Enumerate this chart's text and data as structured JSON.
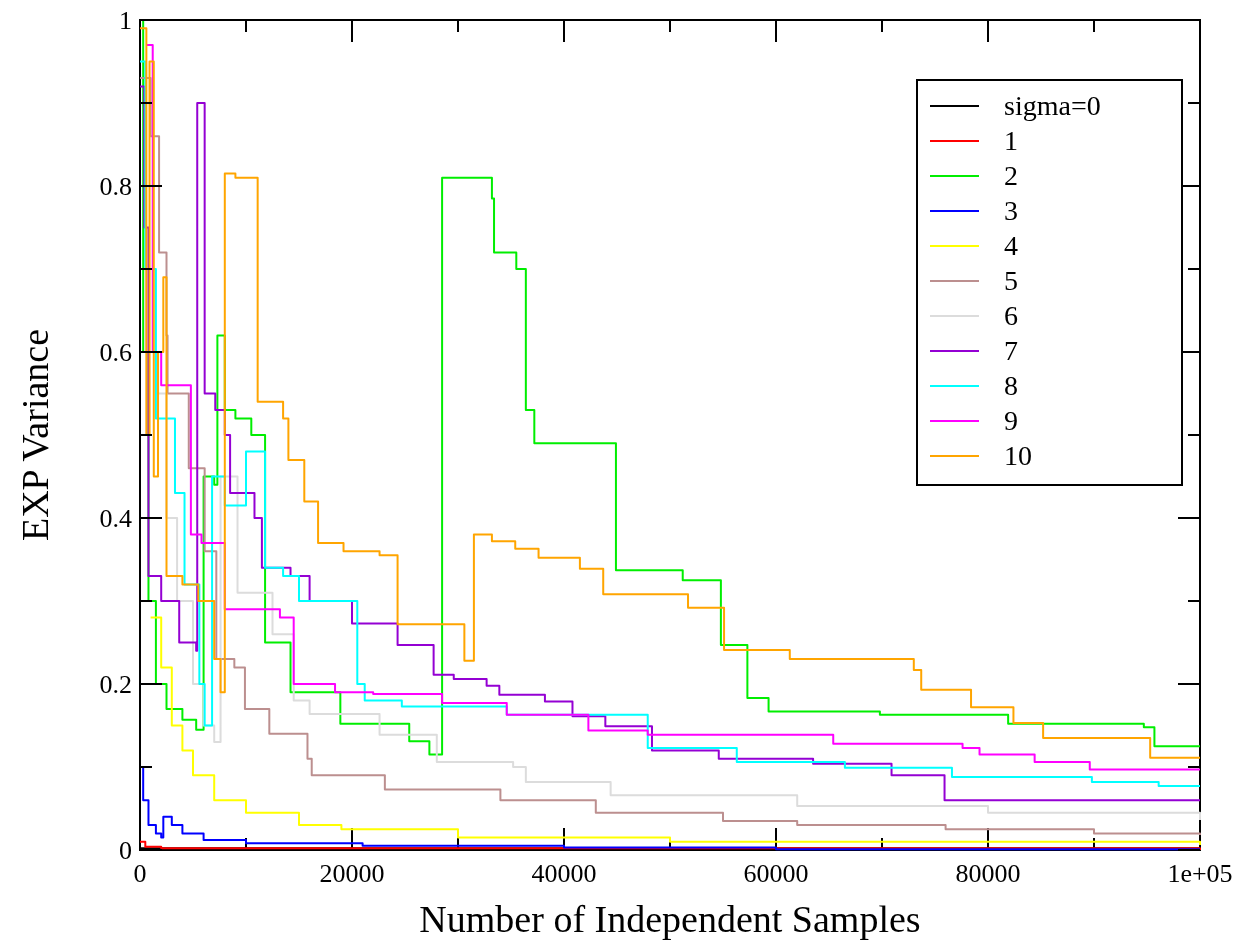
{
  "chart_data": {
    "type": "step",
    "xlabel": "Number of Independent Samples",
    "ylabel": "EXP Variance",
    "xlim": [
      0,
      100000
    ],
    "ylim": [
      0,
      1
    ],
    "xticks": [
      0,
      {
        "value": 10000,
        "label": null
      },
      20000,
      {
        "value": 30000,
        "label": null
      },
      40000,
      {
        "value": 50000,
        "label": null
      },
      60000,
      {
        "value": 70000,
        "label": null
      },
      80000,
      {
        "value": 90000,
        "label": null
      },
      {
        "value": 100000,
        "label": "1e+05"
      }
    ],
    "yticks": [
      0,
      {
        "value": 0.1,
        "label": null
      },
      0.2,
      {
        "value": 0.3,
        "label": null
      },
      0.4,
      {
        "value": 0.5,
        "label": null
      },
      0.6,
      {
        "value": 0.7,
        "label": null
      },
      0.8,
      {
        "value": 0.9,
        "label": null
      },
      1
    ],
    "grid": false,
    "legend": "top right",
    "marker": "none",
    "line_style": "solid",
    "series": [
      {
        "name": "sigma=0",
        "color": "#000000",
        "x": [
          0,
          100000
        ],
        "values": [
          0.002,
          0.002
        ]
      },
      {
        "name": "1",
        "color": "#ff0000",
        "x": [
          0,
          500,
          2000,
          100000
        ],
        "values": [
          0.01,
          0.004,
          0.002,
          0
        ]
      },
      {
        "name": "2",
        "color": "#00ee00",
        "x": [
          0,
          300,
          800,
          1500,
          2500,
          4000,
          5300,
          6000,
          7000,
          7300,
          8000,
          9000,
          10500,
          11800,
          14200,
          18900,
          25400,
          27300,
          28500,
          33200,
          33400,
          35500,
          36400,
          37200,
          44900,
          51200,
          54800,
          57300,
          59300,
          69800,
          81900,
          94700,
          95700,
          100000
        ],
        "values": [
          1,
          0.6,
          0.3,
          0.2,
          0.17,
          0.157,
          0.145,
          0.45,
          0.44,
          0.62,
          0.53,
          0.52,
          0.5,
          0.25,
          0.19,
          0.152,
          0.131,
          0.115,
          0.81,
          0.785,
          0.72,
          0.7,
          0.53,
          0.49,
          0.337,
          0.325,
          0.247,
          0.183,
          0.167,
          0.163,
          0.152,
          0.148,
          0.125,
          0.125
        ]
      },
      {
        "name": "3",
        "color": "#0000ff",
        "x": [
          0,
          300,
          800,
          1500,
          2000,
          2200,
          3000,
          4000,
          6000,
          10000,
          21000,
          40000,
          60000,
          100000
        ],
        "values": [
          0.1,
          0.06,
          0.03,
          0.02,
          0.015,
          0.04,
          0.03,
          0.02,
          0.012,
          0.008,
          0.005,
          0.003,
          0.001,
          0.001
        ]
      },
      {
        "name": "4",
        "color": "#ffff00",
        "x": [
          1000,
          2000,
          3000,
          4000,
          5000,
          7000,
          10000,
          15000,
          19000,
          30000,
          50000,
          100000
        ],
        "values": [
          0.28,
          0.22,
          0.15,
          0.12,
          0.09,
          0.06,
          0.045,
          0.03,
          0.025,
          0.015,
          0.01,
          0.006
        ]
      },
      {
        "name": "5",
        "color": "#bc8f8f",
        "x": [
          0,
          1000,
          1800,
          2500,
          2600,
          4600,
          6100,
          7200,
          8900,
          9900,
          12200,
          15800,
          16200,
          23100,
          34000,
          43000,
          55000,
          62000,
          76000,
          90000,
          100000
        ],
        "values": [
          0.93,
          0.86,
          0.72,
          0.62,
          0.55,
          0.46,
          0.36,
          0.23,
          0.22,
          0.17,
          0.14,
          0.11,
          0.09,
          0.073,
          0.06,
          0.045,
          0.035,
          0.03,
          0.025,
          0.02,
          0.018
        ]
      },
      {
        "name": "6",
        "color": "#dcdcdc",
        "x": [
          0,
          500,
          1500,
          2500,
          3500,
          5000,
          6000,
          7000,
          7600,
          9200,
          12500,
          14500,
          16000,
          22600,
          28000,
          35200,
          36400,
          44400,
          62000,
          80000,
          100000
        ],
        "values": [
          0.9,
          0.6,
          0.55,
          0.4,
          0.3,
          0.2,
          0.15,
          0.13,
          0.45,
          0.31,
          0.26,
          0.18,
          0.164,
          0.139,
          0.106,
          0.1,
          0.082,
          0.066,
          0.053,
          0.045,
          0.036
        ]
      },
      {
        "name": "7",
        "color": "#9400d3",
        "x": [
          0,
          400,
          800,
          2000,
          3700,
          5300,
          5400,
          6100,
          7100,
          8000,
          8500,
          10800,
          11500,
          14200,
          16000,
          20000,
          24300,
          27700,
          29600,
          32700,
          33900,
          38200,
          40800,
          43900,
          48300,
          54600,
          63500,
          70900,
          75900,
          100000
        ],
        "values": [
          0.92,
          0.75,
          0.33,
          0.3,
          0.25,
          0.24,
          0.9,
          0.55,
          0.53,
          0.5,
          0.43,
          0.4,
          0.34,
          0.33,
          0.3,
          0.273,
          0.247,
          0.211,
          0.206,
          0.198,
          0.187,
          0.179,
          0.161,
          0.149,
          0.12,
          0.11,
          0.104,
          0.09,
          0.06,
          0.06
        ]
      },
      {
        "name": "8",
        "color": "#00ffff",
        "x": [
          0,
          500,
          1500,
          3300,
          4200,
          5600,
          6100,
          6800,
          8000,
          10000,
          11800,
          13500,
          15000,
          20500,
          21200,
          24700,
          34600,
          47900,
          56300,
          66500,
          76600,
          89800,
          96100,
          100000
        ],
        "values": [
          0.95,
          0.7,
          0.52,
          0.43,
          0.32,
          0.2,
          0.15,
          0.45,
          0.415,
          0.48,
          0.34,
          0.33,
          0.3,
          0.2,
          0.18,
          0.173,
          0.163,
          0.123,
          0.106,
          0.099,
          0.088,
          0.082,
          0.077,
          0.077
        ]
      },
      {
        "name": "9",
        "color": "#ff00ff",
        "x": [
          600,
          1200,
          2000,
          4800,
          5800,
          8000,
          13200,
          14500,
          18400,
          22000,
          28500,
          34600,
          42300,
          47900,
          65400,
          77600,
          79200,
          84400,
          89600,
          100000
        ],
        "values": [
          0.97,
          0.6,
          0.56,
          0.38,
          0.37,
          0.29,
          0.28,
          0.2,
          0.19,
          0.188,
          0.177,
          0.163,
          0.144,
          0.139,
          0.128,
          0.123,
          0.115,
          0.106,
          0.097,
          0.097
        ]
      },
      {
        "name": "10",
        "color": "#ffa500",
        "x": [
          0,
          600,
          900,
          1300,
          1700,
          2200,
          2500,
          4000,
          5500,
          7000,
          7600,
          8000,
          9000,
          11100,
          13500,
          14000,
          15500,
          16800,
          19200,
          22600,
          24300,
          30600,
          31500,
          33200,
          35400,
          37600,
          41500,
          43700,
          51700,
          55100,
          61300,
          73000,
          73700,
          78400,
          82400,
          85200,
          95300,
          100000
        ],
        "values": [
          0.99,
          0.5,
          0.95,
          0.45,
          0.6,
          0.69,
          0.33,
          0.32,
          0.3,
          0.23,
          0.19,
          0.815,
          0.81,
          0.54,
          0.52,
          0.47,
          0.42,
          0.37,
          0.36,
          0.355,
          0.272,
          0.228,
          0.38,
          0.372,
          0.363,
          0.352,
          0.339,
          0.308,
          0.292,
          0.241,
          0.23,
          0.217,
          0.193,
          0.172,
          0.153,
          0.135,
          0.111,
          0.111
        ]
      }
    ]
  }
}
